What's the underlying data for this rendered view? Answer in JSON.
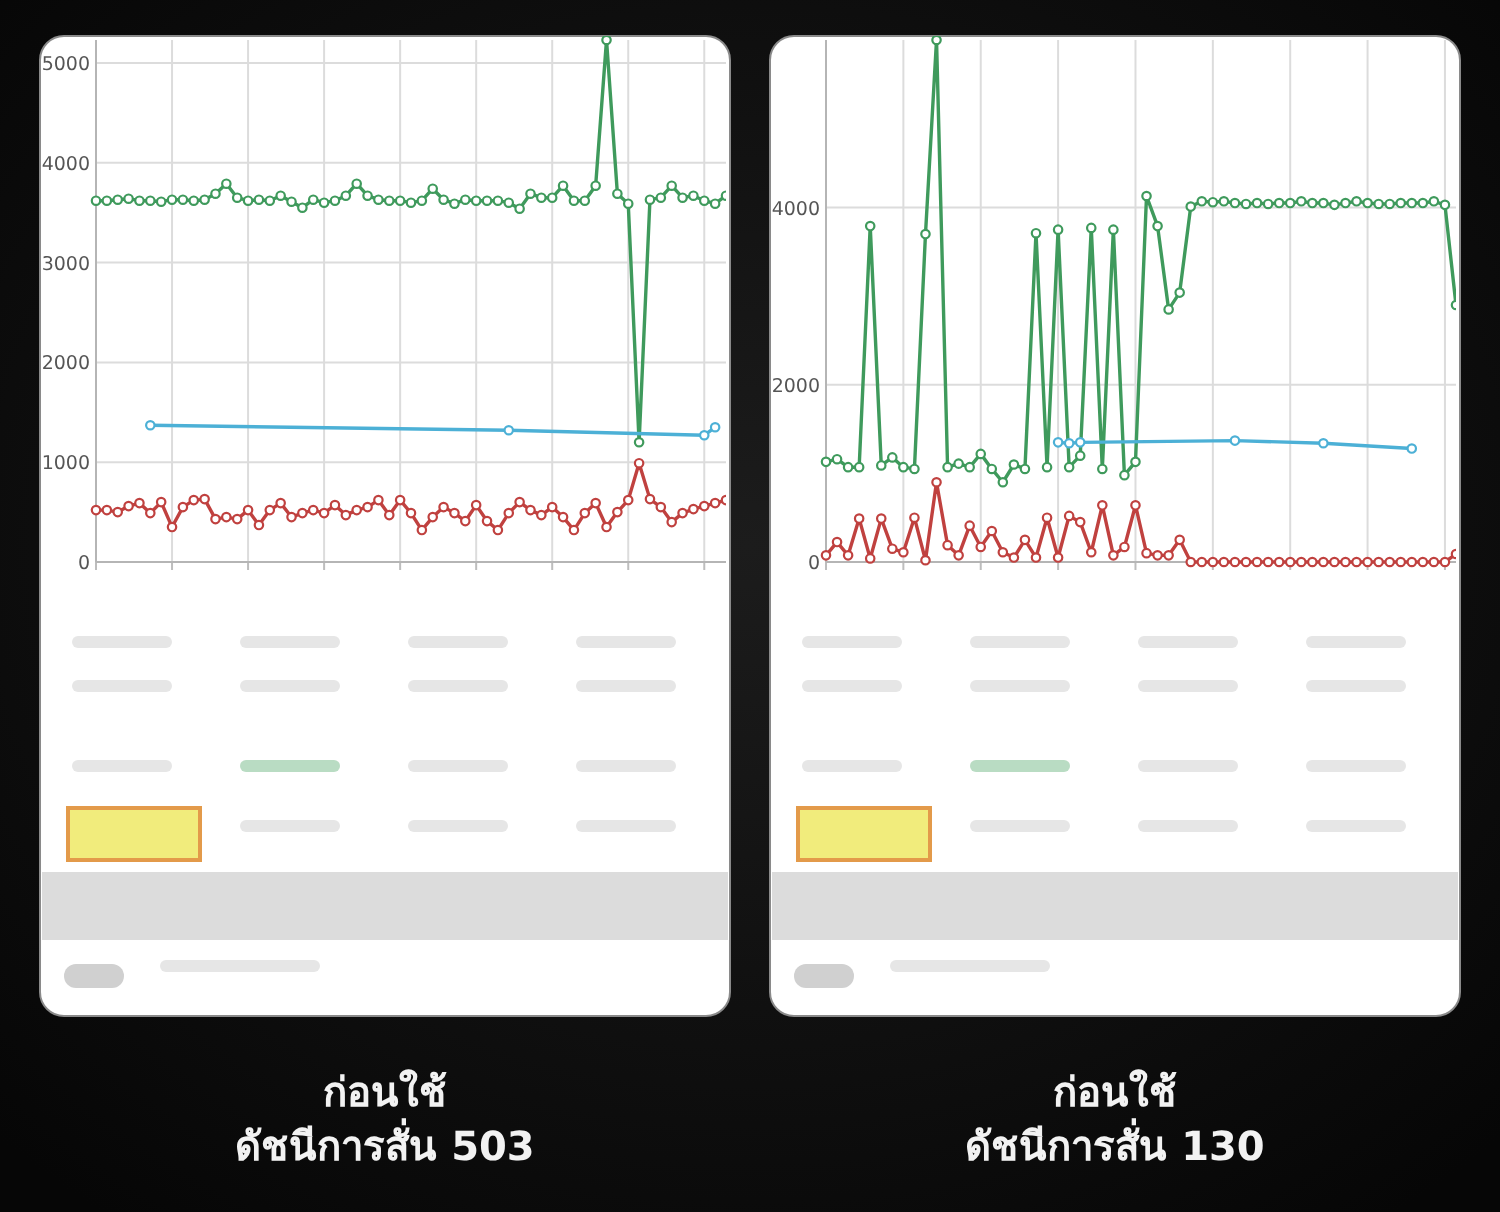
{
  "chart_data": [
    {
      "type": "line",
      "categories": [
        null,
        null,
        null,
        null,
        null,
        null,
        null,
        null,
        null,
        null,
        null,
        null,
        null,
        null,
        null,
        null,
        null,
        null,
        null,
        null,
        null,
        null,
        null,
        null,
        null,
        null,
        null,
        null,
        null,
        null,
        null,
        null,
        null,
        null,
        null,
        null,
        null,
        null,
        null,
        null,
        null,
        null,
        null,
        null,
        null,
        null,
        null,
        null,
        null,
        null,
        null,
        null,
        null,
        null,
        null,
        null,
        null,
        null,
        null
      ],
      "ylim": [
        0,
        5230
      ],
      "yticks": [
        0,
        1000,
        2000,
        3000,
        4000,
        5000
      ],
      "tick_labels": "y",
      "grid": true,
      "marker": "circle",
      "series": [
        {
          "color": "#c0413f",
          "values": [
            520,
            520,
            500,
            560,
            590,
            490,
            600,
            350,
            550,
            620,
            630,
            430,
            450,
            430,
            520,
            370,
            520,
            590,
            450,
            490,
            520,
            490,
            570,
            470,
            520,
            550,
            620,
            470,
            620,
            490,
            320,
            450,
            550,
            490,
            410,
            570,
            410,
            320,
            490,
            600,
            520,
            470,
            550,
            450,
            320,
            490,
            590,
            350,
            500,
            620,
            990,
            630,
            550,
            400,
            490,
            530,
            560,
            590,
            620
          ]
        },
        {
          "color": "#3f9a5c",
          "values": [
            3620,
            3620,
            3630,
            3640,
            3620,
            3620,
            3610,
            3630,
            3630,
            3620,
            3630,
            3690,
            3790,
            3650,
            3620,
            3630,
            3620,
            3670,
            3610,
            3550,
            3630,
            3600,
            3620,
            3670,
            3790,
            3670,
            3630,
            3620,
            3620,
            3600,
            3620,
            3740,
            3630,
            3590,
            3630,
            3620,
            3620,
            3620,
            3600,
            3540,
            3690,
            3650,
            3650,
            3770,
            3620,
            3620,
            3770,
            5230,
            3690,
            3590,
            1200,
            3630,
            3650,
            3770,
            3650,
            3670,
            3620,
            3590,
            3670
          ]
        },
        {
          "color": "#4cb0d6",
          "values": [
            null,
            null,
            null,
            null,
            null,
            1370,
            null,
            null,
            null,
            null,
            null,
            null,
            null,
            null,
            null,
            null,
            null,
            null,
            null,
            null,
            null,
            null,
            null,
            null,
            null,
            null,
            null,
            null,
            null,
            null,
            null,
            null,
            null,
            null,
            null,
            null,
            null,
            null,
            1320,
            null,
            null,
            null,
            null,
            null,
            null,
            null,
            null,
            null,
            null,
            null,
            null,
            null,
            null,
            null,
            null,
            null,
            1270,
            1350,
            null
          ]
        }
      ],
      "annotations": [
        "ก่อนใช้",
        "ดัชนีการสั่น 503"
      ]
    },
    {
      "type": "line",
      "categories": [
        null,
        null,
        null,
        null,
        null,
        null,
        null,
        null,
        null,
        null,
        null,
        null,
        null,
        null,
        null,
        null,
        null,
        null,
        null,
        null,
        null,
        null,
        null,
        null,
        null,
        null,
        null,
        null,
        null,
        null,
        null,
        null,
        null,
        null,
        null,
        null,
        null,
        null,
        null,
        null,
        null,
        null,
        null,
        null,
        null,
        null,
        null,
        null,
        null,
        null,
        null,
        null,
        null,
        null,
        null,
        null,
        null,
        null
      ],
      "ylim": [
        0,
        5890
      ],
      "yticks": [
        0,
        2000,
        4000
      ],
      "tick_labels": "y",
      "grid": true,
      "marker": "circle",
      "series": [
        {
          "color": "#c0413f",
          "values": [
            75,
            225,
            75,
            490,
            40,
            490,
            150,
            110,
            500,
            20,
            900,
            190,
            75,
            410,
            170,
            350,
            110,
            50,
            250,
            50,
            500,
            50,
            520,
            450,
            110,
            640,
            75,
            170,
            640,
            100,
            75,
            75,
            250,
            0,
            0,
            0,
            0,
            0,
            0,
            0,
            0,
            0,
            0,
            0,
            0,
            0,
            0,
            0,
            0,
            0,
            0,
            0,
            0,
            0,
            0,
            0,
            0,
            90
          ]
        },
        {
          "color": "#3f9a5c",
          "values": [
            1130,
            1160,
            1070,
            1070,
            3790,
            1090,
            1180,
            1070,
            1050,
            3700,
            5890,
            1070,
            1110,
            1070,
            1220,
            1050,
            900,
            1100,
            1050,
            3710,
            1070,
            3750,
            1070,
            1200,
            3770,
            1050,
            3750,
            980,
            1130,
            4130,
            3790,
            2850,
            3040,
            4010,
            4070,
            4060,
            4070,
            4050,
            4040,
            4050,
            4040,
            4050,
            4050,
            4070,
            4050,
            4050,
            4030,
            4050,
            4070,
            4050,
            4040,
            4040,
            4050,
            4050,
            4050,
            4070,
            4030,
            2900
          ]
        },
        {
          "color": "#4cb0d6",
          "values": [
            null,
            null,
            null,
            null,
            null,
            null,
            null,
            null,
            null,
            null,
            null,
            null,
            null,
            null,
            null,
            null,
            null,
            null,
            null,
            null,
            null,
            1350,
            1340,
            1350,
            null,
            null,
            null,
            null,
            null,
            null,
            null,
            null,
            null,
            null,
            null,
            null,
            null,
            1370,
            null,
            null,
            null,
            null,
            null,
            null,
            null,
            1340,
            null,
            null,
            null,
            null,
            null,
            null,
            null,
            1280,
            null,
            null,
            null,
            null
          ]
        }
      ],
      "annotations": [
        "ก่อนใช้",
        "ดัชนีการสั่น 130"
      ]
    }
  ]
}
